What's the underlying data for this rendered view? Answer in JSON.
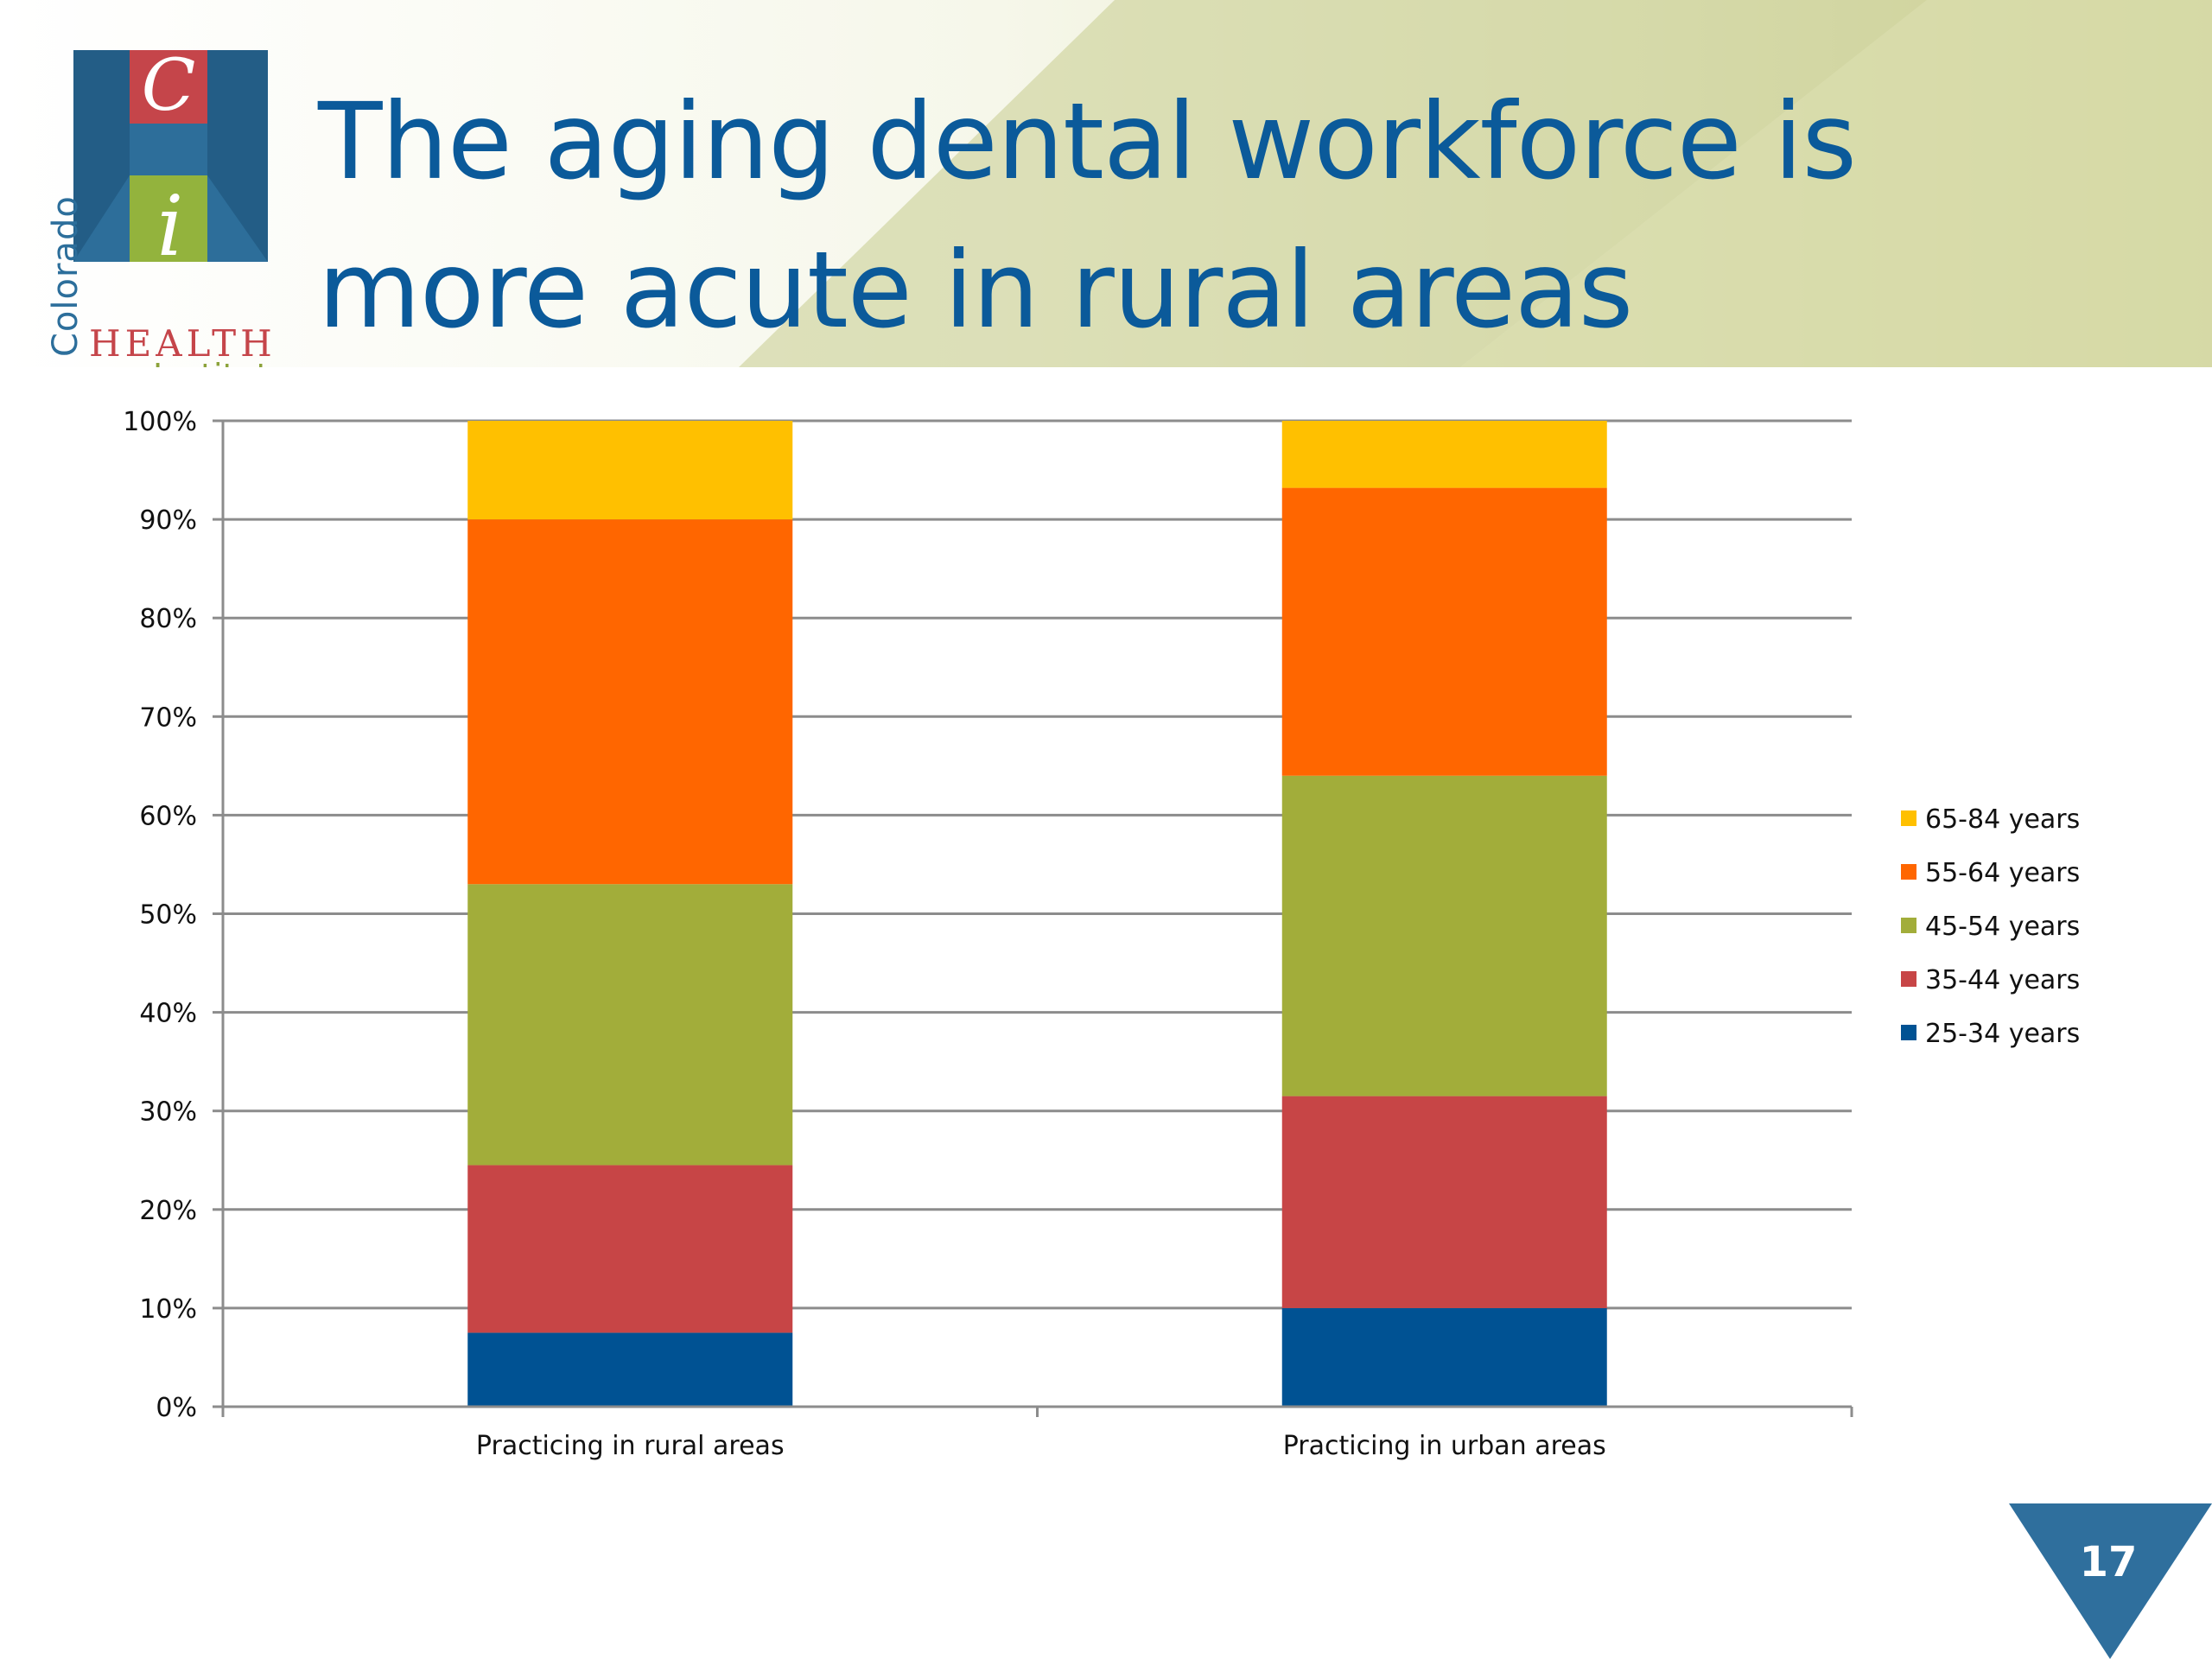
{
  "header": {
    "title_line1": "The aging dental workforce is",
    "title_line2": "more acute in rural areas"
  },
  "logo": {
    "letter_c": "C",
    "letter_i": "i",
    "word_vertical": "Colorado",
    "word_health": "HEALTH",
    "word_institute": "Institute",
    "colors": {
      "blue": "#2c6e9b",
      "red": "#c5454a",
      "green": "#8ca23a"
    }
  },
  "page_number": "17",
  "chart_data": {
    "type": "bar",
    "stacked": true,
    "percent_stacked": true,
    "categories": [
      "Practicing in rural areas",
      "Practicing in urban areas"
    ],
    "series": [
      {
        "name": "25-34 years",
        "values": [
          7.5,
          10.0
        ],
        "color": "#005293"
      },
      {
        "name": "35-44 years",
        "values": [
          17.0,
          21.5
        ],
        "color": "#c74546"
      },
      {
        "name": "45-54 years",
        "values": [
          28.5,
          32.5
        ],
        "color": "#a2ad3a"
      },
      {
        "name": "55-64 years",
        "values": [
          37.0,
          29.2
        ],
        "color": "#ff6600"
      },
      {
        "name": "65-84 years",
        "values": [
          10.0,
          6.8
        ],
        "color": "#ffc000"
      }
    ],
    "yticks": [
      "0%",
      "10%",
      "20%",
      "30%",
      "40%",
      "50%",
      "60%",
      "70%",
      "80%",
      "90%",
      "100%"
    ],
    "ylim": [
      0,
      100
    ],
    "grid": true,
    "legend_position": "right"
  }
}
